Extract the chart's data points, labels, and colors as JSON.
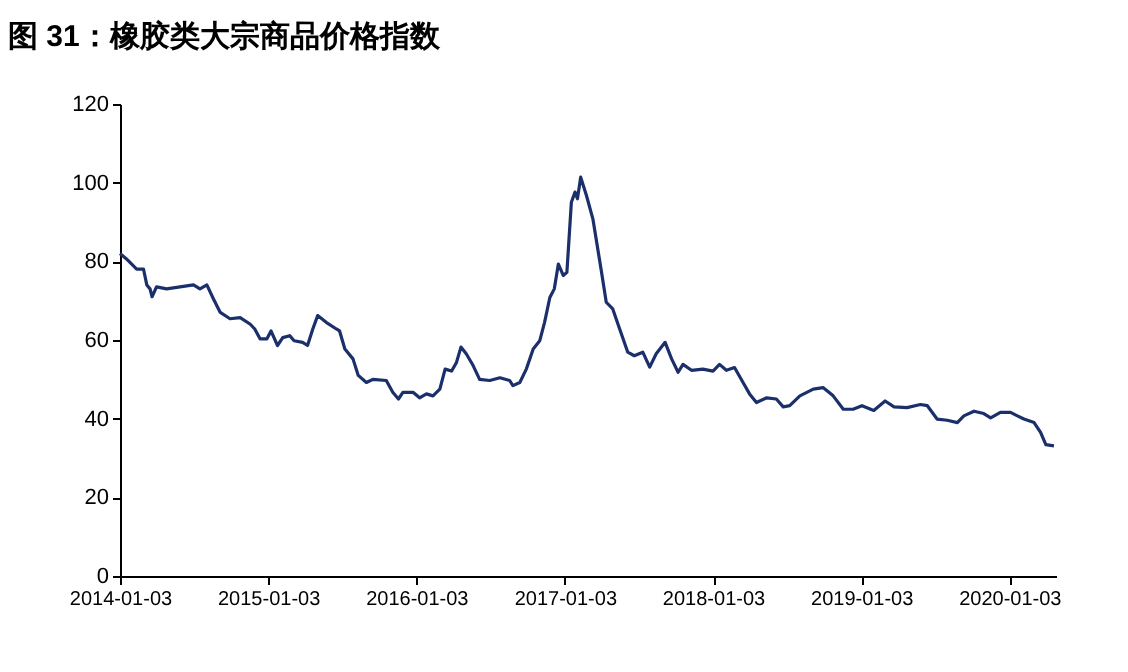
{
  "chart_data": {
    "type": "line",
    "title": "图 31：橡胶类大宗商品价格指数",
    "x": [
      "2014-01-03",
      "2014-01-19",
      "2014-02-13",
      "2014-03-02",
      "2014-03-10",
      "2014-03-18",
      "2014-03-23",
      "2014-04-03",
      "2014-04-28",
      "2014-05-31",
      "2014-07-03",
      "2014-07-19",
      "2014-08-05",
      "2014-08-21",
      "2014-09-07",
      "2014-10-01",
      "2014-10-26",
      "2014-11-20",
      "2014-12-01",
      "2014-12-14",
      "2014-12-31",
      "2015-01-10",
      "2015-01-26",
      "2015-02-08",
      "2015-02-25",
      "2015-03-08",
      "2015-03-29",
      "2015-04-10",
      "2015-04-23",
      "2015-05-05",
      "2015-05-26",
      "2015-06-20",
      "2015-06-28",
      "2015-07-11",
      "2015-07-31",
      "2015-08-13",
      "2015-09-02",
      "2015-09-18",
      "2015-10-21",
      "2015-11-06",
      "2015-11-20",
      "2015-12-01",
      "2015-12-26",
      "2016-01-11",
      "2016-01-28",
      "2016-02-13",
      "2016-03-01",
      "2016-03-14",
      "2016-03-30",
      "2016-04-11",
      "2016-04-22",
      "2016-05-05",
      "2016-05-22",
      "2016-06-07",
      "2016-07-02",
      "2016-07-27",
      "2016-08-20",
      "2016-08-28",
      "2016-09-14",
      "2016-09-30",
      "2016-10-17",
      "2016-11-02",
      "2016-11-14",
      "2016-11-27",
      "2016-12-08",
      "2016-12-18",
      "2016-12-30",
      "2017-01-08",
      "2017-01-19",
      "2017-01-28",
      "2017-02-03",
      "2017-02-11",
      "2017-02-25",
      "2017-03-13",
      "2017-04-02",
      "2017-04-15",
      "2017-05-01",
      "2017-05-18",
      "2017-06-07",
      "2017-06-23",
      "2017-07-14",
      "2017-07-31",
      "2017-08-16",
      "2017-09-07",
      "2017-09-23",
      "2017-10-09",
      "2017-10-21",
      "2017-11-11",
      "2017-12-09",
      "2018-01-03",
      "2018-01-19",
      "2018-02-05",
      "2018-02-25",
      "2018-03-18",
      "2018-04-03",
      "2018-04-20",
      "2018-05-15",
      "2018-06-08",
      "2018-06-25",
      "2018-07-11",
      "2018-08-05",
      "2018-09-07",
      "2018-10-01",
      "2018-10-26",
      "2018-11-20",
      "2018-12-14",
      "2019-01-05",
      "2019-02-03",
      "2019-03-03",
      "2019-03-25",
      "2019-04-26",
      "2019-05-29",
      "2019-06-15",
      "2019-07-09",
      "2019-08-03",
      "2019-08-28",
      "2019-09-13",
      "2019-10-08",
      "2019-11-01",
      "2019-11-18",
      "2019-12-12",
      "2020-01-06",
      "2020-01-23",
      "2020-02-08",
      "2020-03-04",
      "2020-03-20",
      "2020-04-02",
      "2020-04-22"
    ],
    "series": [
      {
        "color": "#1b2f6b",
        "values": [
          82,
          80.6,
          78,
          78,
          74,
          73,
          71,
          73.5,
          73,
          73.5,
          74,
          73,
          74,
          70.5,
          67,
          65.4,
          65.7,
          64,
          62.8,
          60.3,
          60.3,
          62.3,
          58.6,
          60.6,
          61.1,
          59.8,
          59.4,
          58.6,
          62.8,
          66.2,
          64.5,
          62.8,
          62.3,
          57.7,
          55.2,
          51,
          49.2,
          50,
          49.7,
          46.7,
          45,
          46.7,
          46.7,
          45.3,
          46.3,
          45.8,
          47.5,
          52.6,
          52.1,
          54.3,
          58.2,
          56.5,
          53.5,
          50,
          49.7,
          50.4,
          49.7,
          48.4,
          49.2,
          52.6,
          57.7,
          59.8,
          64.5,
          70.8,
          73,
          79.3,
          76.4,
          77.2,
          95,
          97.6,
          95.9,
          101.4,
          96.8,
          90.8,
          78.1,
          69.6,
          67.9,
          62.8,
          56.9,
          56,
          56.9,
          53.1,
          56.5,
          59.4,
          55.2,
          51.8,
          53.8,
          52.3,
          52.6,
          52.1,
          53.8,
          52.3,
          53,
          49.2,
          46.3,
          44.1,
          45.3,
          45,
          43,
          43.3,
          45.8,
          47.5,
          47.9,
          45.8,
          42.4,
          42.4,
          43.3,
          42.1,
          44.5,
          43,
          42.8,
          43.6,
          43.3,
          39.9,
          39.6,
          39,
          40.7,
          41.9,
          41.3,
          40.2,
          41.6,
          41.6,
          40.7,
          39.9,
          39,
          36.5,
          33.4,
          33.1
        ]
      }
    ],
    "xlim": [
      "2014-01-03",
      "2020-04-27"
    ],
    "xticks": [
      "2014-01-03",
      "2015-01-03",
      "2016-01-03",
      "2017-01-03",
      "2018-01-03",
      "2019-01-03",
      "2020-01-03"
    ],
    "ylim": [
      0,
      120
    ],
    "yticks": [
      0,
      20,
      40,
      60,
      80,
      100,
      120
    ],
    "grid": false,
    "marker": "none",
    "line_style": "solid"
  }
}
